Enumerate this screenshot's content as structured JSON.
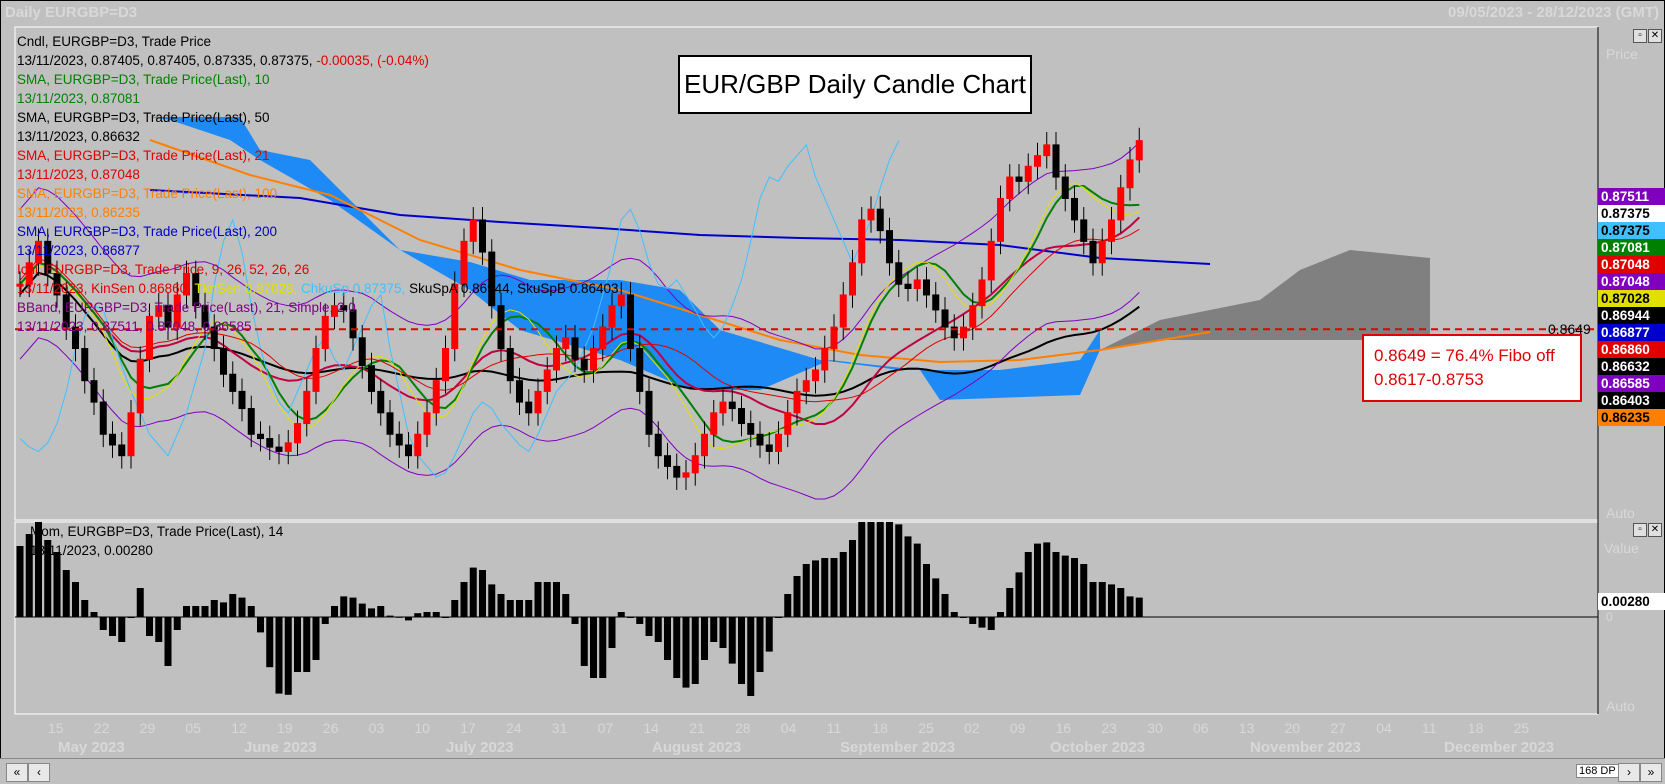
{
  "window": {
    "title": "Daily EURGBP=D3",
    "range": "09/05/2023 - 28/12/2023 (GMT)"
  },
  "title_box": "EUR/GBP Daily Candle Chart",
  "fibo_box": {
    "line1": "0.8649 = 76.4% Fibo off",
    "line2": "0.8617-0.8753"
  },
  "fibo_level": "0.8649",
  "legend": [
    {
      "text": "Cndl, EURGBP=D3, Trade Price",
      "color": "#000000"
    },
    {
      "text": "13/11/2023, 0.87405, 0.87405, 0.87335, 0.87375, ",
      "color": "#000000",
      "extra": "-0.00035, (-0.04%)",
      "extra_color": "#e00000"
    },
    {
      "text": "SMA, EURGBP=D3, Trade Price(Last),  10",
      "color": "#008000"
    },
    {
      "text": "13/11/2023, 0.87081",
      "color": "#008000"
    },
    {
      "text": "SMA, EURGBP=D3, Trade Price(Last),  50",
      "color": "#000000"
    },
    {
      "text": "13/11/2023, 0.86632",
      "color": "#000000"
    },
    {
      "text": "SMA, EURGBP=D3, Trade Price(Last),  21",
      "color": "#e00000"
    },
    {
      "text": "13/11/2023, 0.87048",
      "color": "#e00000"
    },
    {
      "text": "SMA, EURGBP=D3, Trade Price(Last),  100",
      "color": "#ff8000"
    },
    {
      "text": "13/11/2023, 0.86235",
      "color": "#ff8000"
    },
    {
      "text": "SMA, EURGBP=D3, Trade Price(Last),  200",
      "color": "#0000cc"
    },
    {
      "text": "13/11/2023, 0.86877",
      "color": "#0000cc"
    },
    {
      "text": "Ichi, EURGBP=D3, Trade Price,  9, 26, 52, 26, 26",
      "color": "#e00000"
    },
    {
      "text": "13/11/2023, KinSen 0.86860, ",
      "color": "#e00000",
      "extra": "TknSen 0.87028, ",
      "extra_color": "#e0e000",
      "extra2": "ChkuSp 0.87375, ",
      "extra2_color": "#40c0ff",
      "extra3": "SkuSpA 0.86944, SkuSpB 0.86403",
      "extra3_color": "#000000"
    },
    {
      "text": "BBand, EURGBP=D3, Trade Price(Last),  21, Simple, 2.0",
      "color": "#800080"
    },
    {
      "text": "13/11/2023, 0.87511, 0.87048, 0.86585",
      "color": "#800080"
    }
  ],
  "mom_legend": {
    "line1": "Mom, EURGBP=D3, Trade Price(Last),  14",
    "line2": "13/11/2023, 0.00280"
  },
  "price_axis_label": "Price",
  "value_axis_label": "Value",
  "auto_label": "Auto",
  "price_tags": [
    {
      "value": "0.87511",
      "bg": "#8000c0",
      "fg": "#ffffff"
    },
    {
      "value": "0.87375",
      "bg": "#ffffff",
      "fg": "#000000"
    },
    {
      "value": "0.87375",
      "bg": "#40c0ff",
      "fg": "#000000"
    },
    {
      "value": "0.87081",
      "bg": "#008000",
      "fg": "#ffffff"
    },
    {
      "value": "0.87048",
      "bg": "#e00000",
      "fg": "#ffffff"
    },
    {
      "value": "0.87048",
      "bg": "#8000c0",
      "fg": "#ffffff"
    },
    {
      "value": "0.87028",
      "bg": "#e0e000",
      "fg": "#000000"
    },
    {
      "value": "0.86944",
      "bg": "#000000",
      "fg": "#ffffff"
    },
    {
      "value": "0.86877",
      "bg": "#0000cc",
      "fg": "#ffffff"
    },
    {
      "value": "0.86860",
      "bg": "#e00000",
      "fg": "#ffffff"
    },
    {
      "value": "0.86632",
      "bg": "#000000",
      "fg": "#ffffff"
    },
    {
      "value": "0.86585",
      "bg": "#8000c0",
      "fg": "#ffffff"
    },
    {
      "value": "0.86403",
      "bg": "#000000",
      "fg": "#ffffff"
    },
    {
      "value": "0.86235",
      "bg": "#ff8000",
      "fg": "#000000"
    }
  ],
  "mom_tag": {
    "value": "0.00280",
    "bg": "#ffffff",
    "fg": "#000000"
  },
  "mom_zero_label": "0",
  "dates": [
    "15",
    "22",
    "29",
    "05",
    "12",
    "19",
    "26",
    "03",
    "10",
    "17",
    "24",
    "31",
    "07",
    "14",
    "21",
    "28",
    "04",
    "11",
    "18",
    "25",
    "02",
    "09",
    "16",
    "23",
    "30",
    "06",
    "13",
    "20",
    "27",
    "04",
    "11",
    "18",
    "25"
  ],
  "months": [
    "May 2023",
    "June 2023",
    "July 2023",
    "August 2023",
    "September 2023",
    "October 2023",
    "November 2023",
    "December 2023"
  ],
  "bottom_bar": {
    "dp_label": "168 DP"
  },
  "chart_data": {
    "type": "candlestick",
    "instrument": "EURGBP=D3",
    "period": "Daily",
    "price_range": [
      0.856,
      0.879
    ],
    "momentum_range": [
      -0.008,
      0.008
    ],
    "last_close": 0.87375,
    "fibo_line": 0.8649,
    "indicators": {
      "SMA10": 0.87081,
      "SMA21": 0.87048,
      "SMA50": 0.86632,
      "SMA100": 0.86235,
      "SMA200": 0.86877,
      "BB_upper": 0.87511,
      "BB_mid": 0.87048,
      "BB_lower": 0.86585,
      "KinSen": 0.8686,
      "TknSen": 0.87028,
      "ChkuSp": 0.87375,
      "SkuSpA": 0.86944,
      "SkuSpB": 0.86403,
      "Momentum14": 0.0028
    }
  }
}
